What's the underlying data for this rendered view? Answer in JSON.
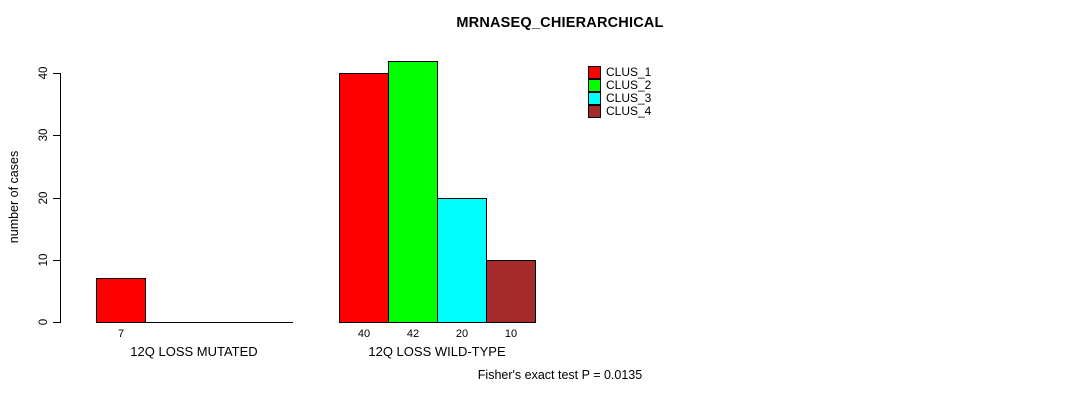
{
  "chart_data": {
    "type": "bar",
    "title": "MRNASEQ_CHIERARCHICAL",
    "ylabel": "number of cases",
    "xlabel": "",
    "categories": [
      "12Q LOSS MUTATED",
      "12Q LOSS WILD-TYPE"
    ],
    "series": [
      {
        "name": "CLUS_1",
        "color": "#ff0000",
        "values": [
          7,
          40
        ]
      },
      {
        "name": "CLUS_2",
        "color": "#00ff00",
        "values": [
          0,
          42
        ]
      },
      {
        "name": "CLUS_3",
        "color": "#00ffff",
        "values": [
          0,
          20
        ]
      },
      {
        "name": "CLUS_4",
        "color": "#a52a2a",
        "values": [
          0,
          10
        ]
      }
    ],
    "yticks": [
      0,
      10,
      20,
      30,
      40
    ],
    "ylim": [
      0,
      42
    ],
    "grid": false,
    "bar_value_labels_shown_for_nonzero_only": true,
    "legend_position": "top-right",
    "annotation": "Fisher's exact test P = 0.0135"
  }
}
